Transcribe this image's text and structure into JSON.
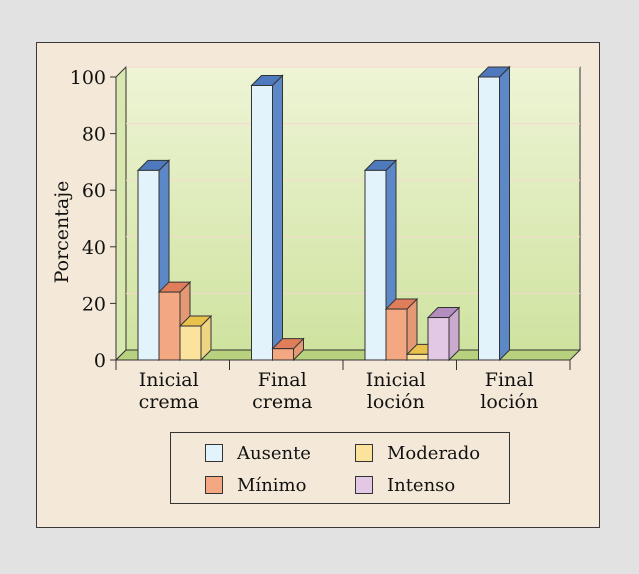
{
  "chart_data": {
    "type": "bar",
    "ylabel": "Porcentaje",
    "ylim": [
      0,
      100
    ],
    "yticks": [
      "0",
      "20",
      "40",
      "60",
      "80",
      "100"
    ],
    "categories": [
      [
        "Inicial",
        "crema"
      ],
      [
        "Final",
        "crema"
      ],
      [
        "Inicial",
        "loción"
      ],
      [
        "Final",
        "loción"
      ]
    ],
    "series": [
      {
        "name": "Ausente",
        "color": "#e3f3fb",
        "values": [
          67,
          97,
          67,
          100
        ]
      },
      {
        "name": "Mínimo",
        "color": "#f4a882",
        "values": [
          24,
          4,
          18,
          0
        ]
      },
      {
        "name": "Moderado",
        "color": "#fbe39e",
        "values": [
          12,
          0,
          2,
          0
        ]
      },
      {
        "name": "Intenso",
        "color": "#e3c8e6",
        "values": [
          0,
          0,
          15,
          0
        ]
      }
    ],
    "legend_placement": "bottom"
  },
  "colors": {
    "outer_background": "#e3e2e3",
    "frame_background": "#f4e9d8",
    "plot_wall_top": "#eef3d2",
    "plot_wall_bottom": "#d3e6a6",
    "bar_top_ausente": "#4f79bd"
  }
}
